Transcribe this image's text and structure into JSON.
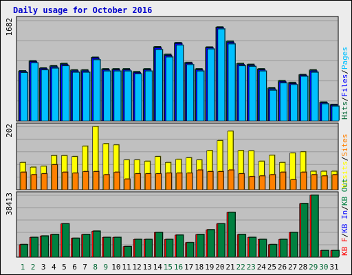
{
  "title": "Daily usage for October 2016",
  "colors": {
    "page_bg": "#ececec",
    "panel_bg": "#c0c0c0",
    "grid": "#999999",
    "title": "#0000cc",
    "axis_text": "#000000",
    "weekend_text": "#006633",
    "hits": "#006633",
    "files": "#0000ff",
    "pages": "#00c0ff",
    "visits": "#ffff00",
    "sites": "#ff8000",
    "kb_f": "#ff0000",
    "kb_in": "#0000ff",
    "kb_out": "#008040"
  },
  "days": [
    "1",
    "2",
    "3",
    "4",
    "5",
    "6",
    "7",
    "8",
    "9",
    "10",
    "11",
    "12",
    "13",
    "14",
    "15",
    "16",
    "17",
    "18",
    "19",
    "20",
    "21",
    "22",
    "23",
    "24",
    "25",
    "26",
    "27",
    "28",
    "29",
    "30",
    "31"
  ],
  "weekend_days": [
    "1",
    "2",
    "8",
    "9",
    "15",
    "16",
    "22",
    "23",
    "29",
    "30"
  ],
  "chart_data": [
    {
      "type": "bar",
      "panel": "hits_files_pages",
      "ymax_label": "1682",
      "ylim": [
        0,
        1682
      ],
      "legend": [
        {
          "label": "Hits",
          "color": "#006633"
        },
        {
          "label": "/",
          "color": "#000000"
        },
        {
          "label": "Files",
          "color": "#0000ff"
        },
        {
          "label": "/",
          "color": "#000000"
        },
        {
          "label": "Pages",
          "color": "#00c0ff"
        }
      ],
      "categories": [
        "1",
        "2",
        "3",
        "4",
        "5",
        "6",
        "7",
        "8",
        "9",
        "10",
        "11",
        "12",
        "13",
        "14",
        "15",
        "16",
        "17",
        "18",
        "19",
        "20",
        "21",
        "22",
        "23",
        "24",
        "25",
        "26",
        "27",
        "28",
        "29",
        "30",
        "31"
      ],
      "series": [
        {
          "name": "Hits",
          "values": [
            840,
            1008,
            887,
            924,
            963,
            855,
            855,
            1067,
            874,
            874,
            874,
            826,
            874,
            1244,
            1118,
            1312,
            981,
            874,
            1239,
            1575,
            1337,
            963,
            949,
            874,
            554,
            675,
            646,
            777,
            855,
            316,
            277
          ]
        },
        {
          "name": "Files",
          "values": [
            826,
            993,
            873,
            904,
            943,
            836,
            836,
            1052,
            855,
            855,
            855,
            807,
            855,
            1225,
            1098,
            1298,
            963,
            855,
            1225,
            1560,
            1317,
            943,
            929,
            855,
            534,
            656,
            626,
            763,
            836,
            301,
            262
          ]
        },
        {
          "name": "Pages",
          "values": [
            811,
            973,
            855,
            885,
            924,
            816,
            816,
            1025,
            836,
            836,
            836,
            787,
            836,
            1195,
            1071,
            1269,
            943,
            836,
            1206,
            1542,
            1290,
            924,
            914,
            836,
            515,
            636,
            608,
            748,
            816,
            287,
            248
          ]
        }
      ]
    },
    {
      "type": "bar",
      "panel": "visits_sites",
      "ymax_label": "202",
      "ylim": [
        0,
        202
      ],
      "legend": [
        {
          "label": "Visits",
          "color": "#ffff00"
        },
        {
          "label": "/",
          "color": "#000000"
        },
        {
          "label": "Sites",
          "color": "#ff8000"
        }
      ],
      "categories": [
        "1",
        "2",
        "3",
        "4",
        "5",
        "6",
        "7",
        "8",
        "9",
        "10",
        "11",
        "12",
        "13",
        "14",
        "15",
        "16",
        "17",
        "18",
        "19",
        "20",
        "21",
        "22",
        "23",
        "24",
        "25",
        "26",
        "27",
        "28",
        "29",
        "30",
        "31"
      ],
      "series": [
        {
          "name": "Visits",
          "values": [
            87,
            72,
            75,
            109,
            109,
            106,
            139,
            202,
            147,
            143,
            95,
            95,
            91,
            106,
            87,
            97,
            102,
            95,
            125,
            157,
            187,
            125,
            124,
            91,
            110,
            87,
            117,
            121,
            59,
            59,
            59
          ]
        },
        {
          "name": "Sites",
          "values": [
            56,
            48,
            51,
            80,
            56,
            53,
            58,
            58,
            48,
            56,
            34,
            51,
            51,
            51,
            53,
            53,
            53,
            63,
            58,
            58,
            63,
            51,
            42,
            44,
            48,
            56,
            32,
            56,
            48,
            44,
            48
          ]
        }
      ]
    },
    {
      "type": "bar",
      "panel": "kbytes",
      "ymax_label": "38413",
      "ylim": [
        0,
        38413
      ],
      "legend": [
        {
          "label": "KB F",
          "color": "#ff0000"
        },
        {
          "label": "/",
          "color": "#000000"
        },
        {
          "label": "KB In",
          "color": "#0000ff"
        },
        {
          "label": "/",
          "color": "#000000"
        },
        {
          "label": "KB Out",
          "color": "#008040"
        }
      ],
      "categories": [
        "1",
        "2",
        "3",
        "4",
        "5",
        "6",
        "7",
        "8",
        "9",
        "10",
        "11",
        "12",
        "13",
        "14",
        "15",
        "16",
        "17",
        "18",
        "19",
        "20",
        "21",
        "22",
        "23",
        "24",
        "25",
        "26",
        "27",
        "28",
        "29",
        "30",
        "31"
      ],
      "series": [
        {
          "name": "KB F",
          "values": [
            7768,
            12221,
            13075,
            14024,
            20664,
            11663,
            14024,
            16088,
            12221,
            12221,
            6532,
            10977,
            10977,
            15326,
            10977,
            13651,
            9008,
            14024,
            16961,
            20664,
            27769,
            14024,
            12221,
            10977,
            7768,
            10977,
            15326,
            33224,
            38413,
            4065,
            4065
          ]
        },
        {
          "name": "KB In",
          "values": [
            0,
            0,
            0,
            0,
            0,
            0,
            0,
            0,
            0,
            0,
            0,
            0,
            0,
            0,
            0,
            0,
            0,
            0,
            0,
            0,
            0,
            0,
            0,
            0,
            0,
            0,
            0,
            0,
            0,
            0,
            0
          ]
        },
        {
          "name": "KB Out",
          "values": [
            7768,
            12221,
            13075,
            14024,
            20664,
            11663,
            14024,
            16088,
            12221,
            12221,
            6532,
            10977,
            10977,
            15326,
            10977,
            13651,
            9008,
            14024,
            16961,
            20664,
            27769,
            14024,
            12221,
            10977,
            7768,
            10977,
            15326,
            33224,
            38413,
            4065,
            4065
          ]
        }
      ]
    }
  ]
}
